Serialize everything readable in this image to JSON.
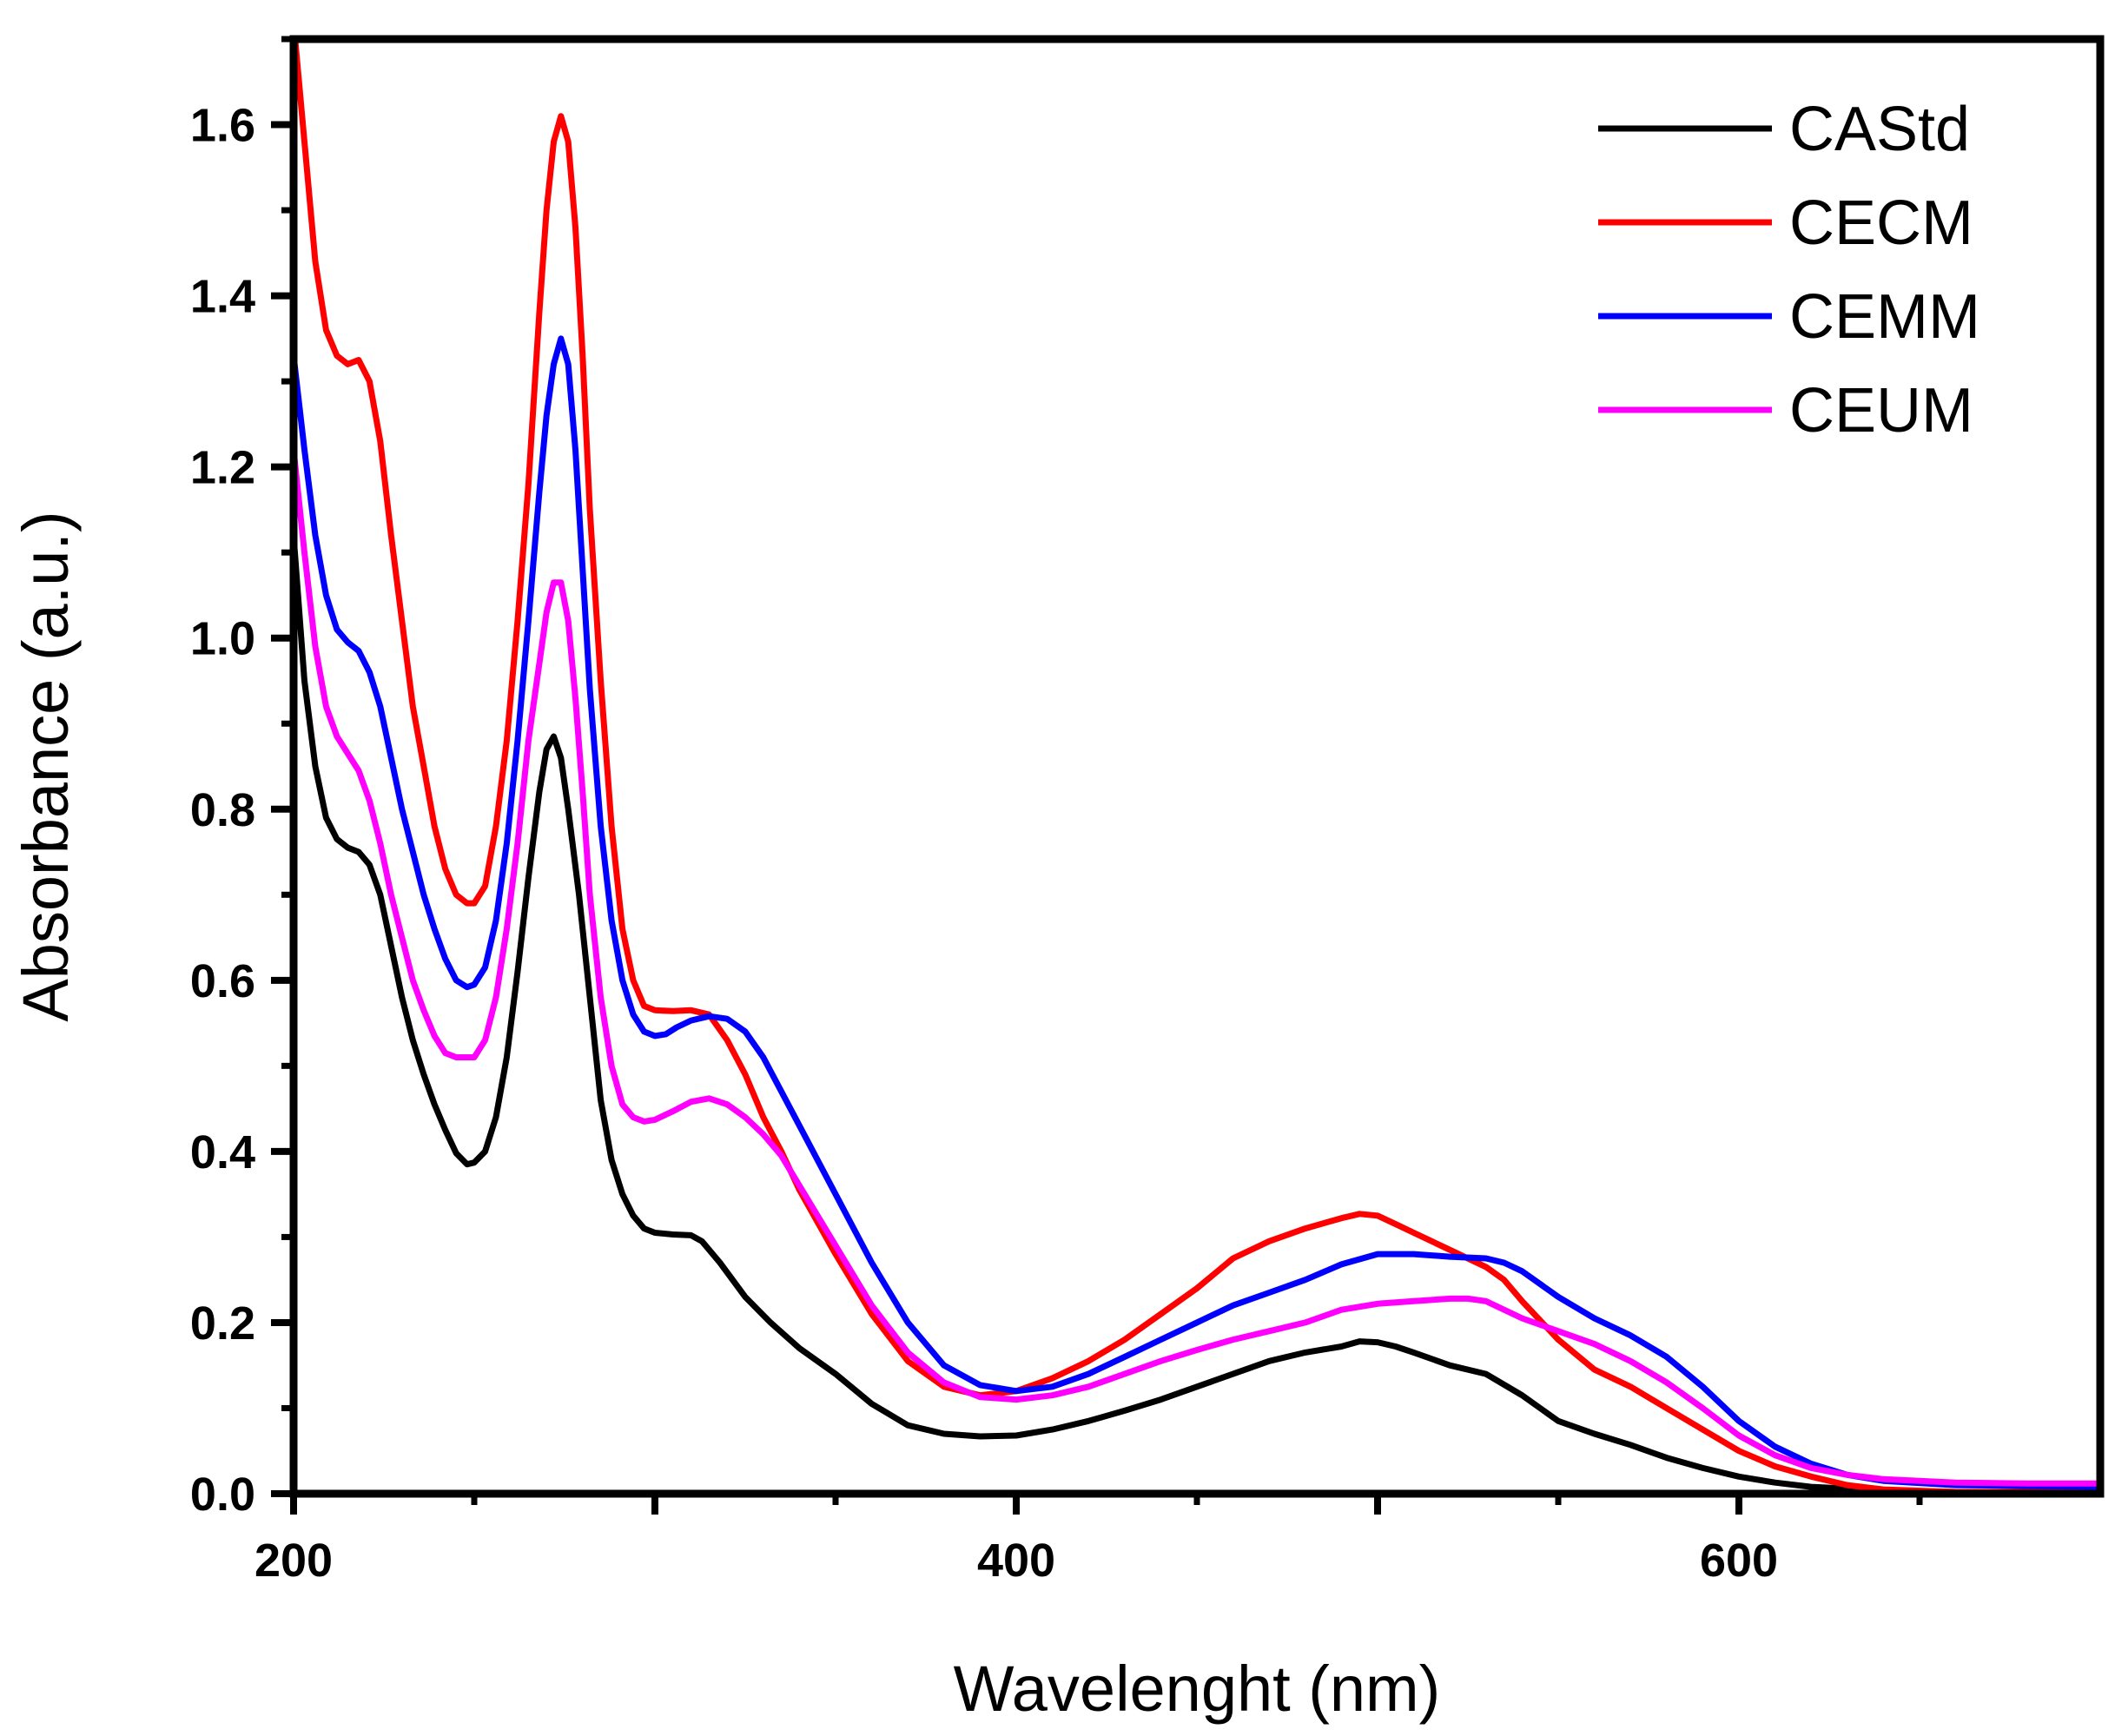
{
  "chart_data": {
    "type": "line",
    "xlabel": "Wavelenght (nm)",
    "ylabel": "Absorbance (a.u.)",
    "xlim": [
      200,
      700
    ],
    "ylim": [
      0.0,
      1.7
    ],
    "x_ticks": [
      200,
      300,
      400,
      500,
      600
    ],
    "x_tick_labels": [
      "200",
      "",
      "400",
      "",
      "600"
    ],
    "y_ticks": [
      0.0,
      0.2,
      0.4,
      0.6,
      0.8,
      1.0,
      1.2,
      1.4,
      1.6
    ],
    "y_tick_labels": [
      "0.0",
      "0.2",
      "0.4",
      "0.6",
      "0.8",
      "1.0",
      "1.2",
      "1.4",
      "1.6"
    ],
    "legend_position": "top-right",
    "grid": false,
    "series": [
      {
        "name": "CAStd",
        "color": "#000000",
        "points": [
          [
            200,
            1.12
          ],
          [
            203,
            0.95
          ],
          [
            206,
            0.85
          ],
          [
            209,
            0.79
          ],
          [
            212,
            0.765
          ],
          [
            215,
            0.755
          ],
          [
            218,
            0.75
          ],
          [
            221,
            0.735
          ],
          [
            224,
            0.7
          ],
          [
            227,
            0.64
          ],
          [
            230,
            0.58
          ],
          [
            233,
            0.53
          ],
          [
            236,
            0.49
          ],
          [
            239,
            0.455
          ],
          [
            242,
            0.425
          ],
          [
            245,
            0.398
          ],
          [
            248,
            0.385
          ],
          [
            250,
            0.387
          ],
          [
            253,
            0.4
          ],
          [
            256,
            0.44
          ],
          [
            259,
            0.51
          ],
          [
            262,
            0.61
          ],
          [
            265,
            0.72
          ],
          [
            268,
            0.82
          ],
          [
            270,
            0.87
          ],
          [
            272,
            0.885
          ],
          [
            274,
            0.86
          ],
          [
            276,
            0.8
          ],
          [
            279,
            0.7
          ],
          [
            282,
            0.58
          ],
          [
            285,
            0.46
          ],
          [
            288,
            0.39
          ],
          [
            291,
            0.35
          ],
          [
            294,
            0.325
          ],
          [
            297,
            0.31
          ],
          [
            300,
            0.305
          ],
          [
            305,
            0.303
          ],
          [
            310,
            0.302
          ],
          [
            313,
            0.295
          ],
          [
            318,
            0.27
          ],
          [
            325,
            0.23
          ],
          [
            332,
            0.2
          ],
          [
            340,
            0.17
          ],
          [
            350,
            0.14
          ],
          [
            360,
            0.105
          ],
          [
            370,
            0.08
          ],
          [
            380,
            0.07
          ],
          [
            390,
            0.067
          ],
          [
            400,
            0.068
          ],
          [
            410,
            0.075
          ],
          [
            420,
            0.085
          ],
          [
            430,
            0.097
          ],
          [
            440,
            0.11
          ],
          [
            450,
            0.125
          ],
          [
            460,
            0.14
          ],
          [
            470,
            0.155
          ],
          [
            480,
            0.165
          ],
          [
            490,
            0.172
          ],
          [
            495,
            0.178
          ],
          [
            500,
            0.177
          ],
          [
            505,
            0.172
          ],
          [
            510,
            0.165
          ],
          [
            520,
            0.15
          ],
          [
            530,
            0.14
          ],
          [
            540,
            0.115
          ],
          [
            550,
            0.085
          ],
          [
            560,
            0.07
          ],
          [
            570,
            0.057
          ],
          [
            580,
            0.042
          ],
          [
            590,
            0.03
          ],
          [
            600,
            0.02
          ],
          [
            610,
            0.013
          ],
          [
            620,
            0.008
          ],
          [
            640,
            0.004
          ],
          [
            660,
            0.002
          ],
          [
            680,
            0.001
          ],
          [
            700,
            0.001
          ]
        ]
      },
      {
        "name": "CECM",
        "color": "#ff0000",
        "points": [
          [
            200,
            1.72
          ],
          [
            203,
            1.58
          ],
          [
            206,
            1.44
          ],
          [
            209,
            1.36
          ],
          [
            212,
            1.33
          ],
          [
            215,
            1.32
          ],
          [
            218,
            1.325
          ],
          [
            221,
            1.3
          ],
          [
            224,
            1.23
          ],
          [
            227,
            1.12
          ],
          [
            230,
            1.02
          ],
          [
            233,
            0.92
          ],
          [
            236,
            0.85
          ],
          [
            239,
            0.78
          ],
          [
            242,
            0.73
          ],
          [
            245,
            0.7
          ],
          [
            248,
            0.69
          ],
          [
            250,
            0.69
          ],
          [
            253,
            0.71
          ],
          [
            256,
            0.78
          ],
          [
            259,
            0.88
          ],
          [
            262,
            1.02
          ],
          [
            265,
            1.18
          ],
          [
            268,
            1.38
          ],
          [
            270,
            1.5
          ],
          [
            272,
            1.58
          ],
          [
            274,
            1.61
          ],
          [
            276,
            1.58
          ],
          [
            278,
            1.48
          ],
          [
            280,
            1.33
          ],
          [
            282,
            1.15
          ],
          [
            285,
            0.95
          ],
          [
            288,
            0.78
          ],
          [
            291,
            0.66
          ],
          [
            294,
            0.6
          ],
          [
            297,
            0.57
          ],
          [
            300,
            0.565
          ],
          [
            305,
            0.564
          ],
          [
            310,
            0.565
          ],
          [
            315,
            0.56
          ],
          [
            320,
            0.53
          ],
          [
            325,
            0.49
          ],
          [
            330,
            0.44
          ],
          [
            335,
            0.4
          ],
          [
            340,
            0.355
          ],
          [
            350,
            0.28
          ],
          [
            360,
            0.21
          ],
          [
            370,
            0.155
          ],
          [
            380,
            0.125
          ],
          [
            390,
            0.115
          ],
          [
            400,
            0.12
          ],
          [
            410,
            0.135
          ],
          [
            420,
            0.155
          ],
          [
            430,
            0.18
          ],
          [
            440,
            0.21
          ],
          [
            450,
            0.24
          ],
          [
            460,
            0.275
          ],
          [
            470,
            0.295
          ],
          [
            480,
            0.31
          ],
          [
            490,
            0.322
          ],
          [
            495,
            0.327
          ],
          [
            500,
            0.325
          ],
          [
            505,
            0.315
          ],
          [
            510,
            0.305
          ],
          [
            520,
            0.285
          ],
          [
            530,
            0.265
          ],
          [
            535,
            0.25
          ],
          [
            540,
            0.225
          ],
          [
            550,
            0.18
          ],
          [
            560,
            0.145
          ],
          [
            570,
            0.125
          ],
          [
            580,
            0.1
          ],
          [
            590,
            0.075
          ],
          [
            600,
            0.05
          ],
          [
            610,
            0.032
          ],
          [
            620,
            0.02
          ],
          [
            630,
            0.01
          ],
          [
            640,
            0.005
          ],
          [
            660,
            0.002
          ],
          [
            680,
            0.002
          ],
          [
            700,
            0.002
          ]
        ]
      },
      {
        "name": "CEMM",
        "color": "#0000ff",
        "points": [
          [
            200,
            1.33
          ],
          [
            203,
            1.22
          ],
          [
            206,
            1.12
          ],
          [
            209,
            1.05
          ],
          [
            212,
            1.01
          ],
          [
            215,
            0.995
          ],
          [
            218,
            0.985
          ],
          [
            221,
            0.96
          ],
          [
            224,
            0.92
          ],
          [
            227,
            0.86
          ],
          [
            230,
            0.8
          ],
          [
            233,
            0.75
          ],
          [
            236,
            0.7
          ],
          [
            239,
            0.66
          ],
          [
            242,
            0.625
          ],
          [
            245,
            0.6
          ],
          [
            248,
            0.592
          ],
          [
            250,
            0.595
          ],
          [
            253,
            0.615
          ],
          [
            256,
            0.67
          ],
          [
            259,
            0.76
          ],
          [
            262,
            0.88
          ],
          [
            265,
            1.02
          ],
          [
            268,
            1.17
          ],
          [
            270,
            1.26
          ],
          [
            272,
            1.32
          ],
          [
            274,
            1.35
          ],
          [
            276,
            1.32
          ],
          [
            278,
            1.22
          ],
          [
            280,
            1.08
          ],
          [
            282,
            0.94
          ],
          [
            285,
            0.78
          ],
          [
            288,
            0.67
          ],
          [
            291,
            0.6
          ],
          [
            294,
            0.56
          ],
          [
            297,
            0.54
          ],
          [
            300,
            0.535
          ],
          [
            303,
            0.537
          ],
          [
            306,
            0.545
          ],
          [
            310,
            0.553
          ],
          [
            315,
            0.558
          ],
          [
            320,
            0.555
          ],
          [
            325,
            0.54
          ],
          [
            330,
            0.51
          ],
          [
            335,
            0.47
          ],
          [
            340,
            0.43
          ],
          [
            350,
            0.35
          ],
          [
            360,
            0.27
          ],
          [
            370,
            0.2
          ],
          [
            380,
            0.15
          ],
          [
            390,
            0.127
          ],
          [
            400,
            0.12
          ],
          [
            410,
            0.125
          ],
          [
            420,
            0.14
          ],
          [
            430,
            0.16
          ],
          [
            440,
            0.18
          ],
          [
            450,
            0.2
          ],
          [
            460,
            0.22
          ],
          [
            470,
            0.235
          ],
          [
            480,
            0.25
          ],
          [
            490,
            0.268
          ],
          [
            500,
            0.28
          ],
          [
            510,
            0.28
          ],
          [
            520,
            0.277
          ],
          [
            530,
            0.275
          ],
          [
            535,
            0.27
          ],
          [
            540,
            0.26
          ],
          [
            550,
            0.23
          ],
          [
            560,
            0.205
          ],
          [
            570,
            0.185
          ],
          [
            580,
            0.16
          ],
          [
            590,
            0.125
          ],
          [
            600,
            0.085
          ],
          [
            610,
            0.055
          ],
          [
            620,
            0.035
          ],
          [
            630,
            0.022
          ],
          [
            640,
            0.015
          ],
          [
            660,
            0.01
          ],
          [
            680,
            0.009
          ],
          [
            700,
            0.008
          ]
        ]
      },
      {
        "name": "CEUM",
        "color": "#ff00ff",
        "points": [
          [
            200,
            1.22
          ],
          [
            203,
            1.1
          ],
          [
            206,
            0.99
          ],
          [
            209,
            0.92
          ],
          [
            212,
            0.885
          ],
          [
            215,
            0.865
          ],
          [
            218,
            0.845
          ],
          [
            221,
            0.81
          ],
          [
            224,
            0.76
          ],
          [
            227,
            0.7
          ],
          [
            230,
            0.65
          ],
          [
            233,
            0.6
          ],
          [
            236,
            0.565
          ],
          [
            239,
            0.535
          ],
          [
            242,
            0.515
          ],
          [
            245,
            0.51
          ],
          [
            248,
            0.51
          ],
          [
            250,
            0.51
          ],
          [
            253,
            0.53
          ],
          [
            256,
            0.58
          ],
          [
            259,
            0.66
          ],
          [
            262,
            0.76
          ],
          [
            265,
            0.88
          ],
          [
            268,
            0.97
          ],
          [
            270,
            1.03
          ],
          [
            272,
            1.065
          ],
          [
            274,
            1.065
          ],
          [
            276,
            1.02
          ],
          [
            278,
            0.93
          ],
          [
            280,
            0.82
          ],
          [
            282,
            0.7
          ],
          [
            285,
            0.58
          ],
          [
            288,
            0.5
          ],
          [
            291,
            0.455
          ],
          [
            294,
            0.44
          ],
          [
            297,
            0.435
          ],
          [
            300,
            0.437
          ],
          [
            305,
            0.447
          ],
          [
            310,
            0.458
          ],
          [
            315,
            0.462
          ],
          [
            320,
            0.455
          ],
          [
            325,
            0.44
          ],
          [
            330,
            0.42
          ],
          [
            335,
            0.395
          ],
          [
            340,
            0.36
          ],
          [
            350,
            0.29
          ],
          [
            360,
            0.22
          ],
          [
            370,
            0.165
          ],
          [
            380,
            0.13
          ],
          [
            390,
            0.113
          ],
          [
            400,
            0.11
          ],
          [
            410,
            0.115
          ],
          [
            420,
            0.125
          ],
          [
            430,
            0.14
          ],
          [
            440,
            0.155
          ],
          [
            450,
            0.168
          ],
          [
            460,
            0.18
          ],
          [
            470,
            0.19
          ],
          [
            480,
            0.2
          ],
          [
            490,
            0.215
          ],
          [
            500,
            0.222
          ],
          [
            510,
            0.225
          ],
          [
            520,
            0.228
          ],
          [
            525,
            0.228
          ],
          [
            530,
            0.225
          ],
          [
            540,
            0.205
          ],
          [
            550,
            0.19
          ],
          [
            560,
            0.175
          ],
          [
            570,
            0.155
          ],
          [
            580,
            0.13
          ],
          [
            590,
            0.1
          ],
          [
            600,
            0.068
          ],
          [
            610,
            0.045
          ],
          [
            620,
            0.03
          ],
          [
            630,
            0.022
          ],
          [
            640,
            0.017
          ],
          [
            660,
            0.013
          ],
          [
            680,
            0.012
          ],
          [
            700,
            0.012
          ]
        ]
      }
    ]
  }
}
